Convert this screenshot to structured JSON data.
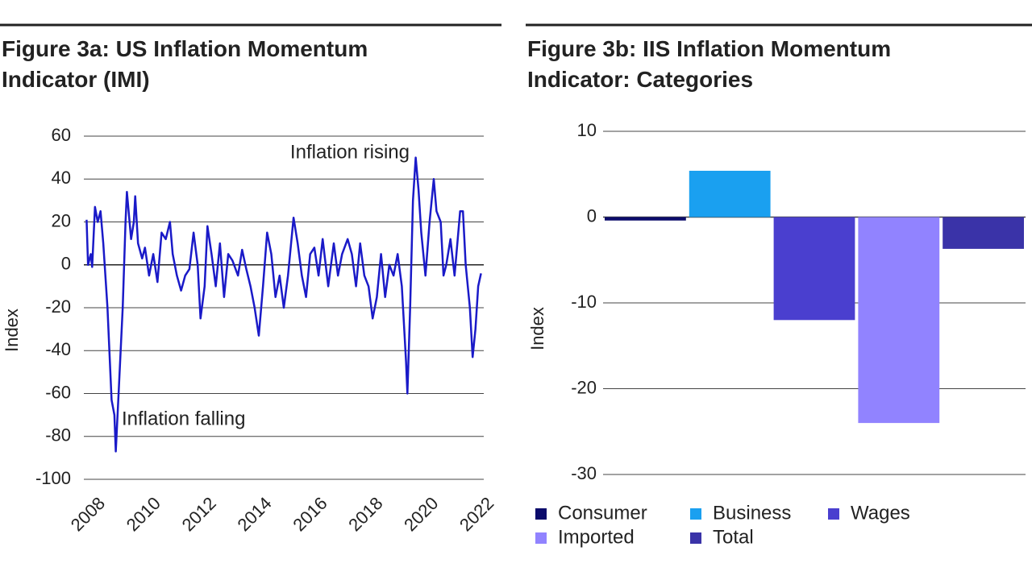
{
  "chart_data": [
    {
      "type": "line",
      "title": "Figure 3a: US Inflation Momentum Indicator (IMI)",
      "ylabel": "Index",
      "annotations": [
        "Inflation rising",
        "Inflation falling"
      ],
      "color": "#1a1ac8",
      "x": [
        2008.0,
        2008.05,
        2008.15,
        2008.2,
        2008.3,
        2008.4,
        2008.5,
        2008.6,
        2008.75,
        2008.9,
        2009.0,
        2009.05,
        2009.15,
        2009.3,
        2009.4,
        2009.45,
        2009.6,
        2009.7,
        2009.75,
        2009.85,
        2010.0,
        2010.1,
        2010.25,
        2010.4,
        2010.55,
        2010.7,
        2010.85,
        2011.0,
        2011.1,
        2011.25,
        2011.4,
        2011.55,
        2011.7,
        2011.85,
        2012.0,
        2012.1,
        2012.25,
        2012.35,
        2012.5,
        2012.65,
        2012.8,
        2012.95,
        2013.1,
        2013.25,
        2013.45,
        2013.6,
        2013.75,
        2013.9,
        2014.05,
        2014.2,
        2014.35,
        2014.5,
        2014.65,
        2014.8,
        2014.95,
        2015.1,
        2015.25,
        2015.45,
        2015.6,
        2015.75,
        2015.9,
        2016.05,
        2016.2,
        2016.35,
        2016.5,
        2016.7,
        2016.9,
        2017.05,
        2017.2,
        2017.4,
        2017.55,
        2017.7,
        2017.85,
        2018.0,
        2018.15,
        2018.3,
        2018.45,
        2018.6,
        2018.75,
        2018.9,
        2019.05,
        2019.2,
        2019.35,
        2019.5,
        2019.55,
        2019.65,
        2019.75,
        2019.85,
        2019.95,
        2020.05,
        2020.2,
        2020.35,
        2020.5,
        2020.6,
        2020.75,
        2020.85,
        2020.95,
        2021.1,
        2021.25,
        2021.45,
        2021.55,
        2021.65,
        2021.8,
        2021.9,
        2022.0,
        2022.1,
        2022.2
      ],
      "values": [
        21,
        0,
        5,
        -1,
        27,
        20,
        25,
        10,
        -20,
        -63,
        -70,
        -87,
        -60,
        -20,
        20,
        34,
        12,
        20,
        32,
        10,
        3,
        8,
        -5,
        5,
        -8,
        15,
        12,
        20,
        5,
        -5,
        -12,
        -5,
        -2,
        15,
        0,
        -25,
        -10,
        18,
        5,
        -10,
        10,
        -15,
        5,
        2,
        -5,
        7,
        -2,
        -10,
        -20,
        -33,
        -10,
        15,
        5,
        -15,
        -5,
        -20,
        -5,
        22,
        10,
        -5,
        -15,
        5,
        8,
        -5,
        12,
        -10,
        10,
        -5,
        5,
        12,
        5,
        -10,
        10,
        -5,
        -10,
        -25,
        -15,
        5,
        -15,
        0,
        -5,
        5,
        -10,
        -45,
        -60,
        -20,
        30,
        50,
        35,
        15,
        -5,
        20,
        40,
        25,
        20,
        -5,
        0,
        12,
        -5,
        25,
        25,
        0,
        -20,
        -43,
        -30,
        -10,
        -4
      ],
      "xlim": [
        2007.9,
        2022.3
      ],
      "xticks": [
        2008,
        2010,
        2012,
        2014,
        2016,
        2018,
        2020,
        2022
      ],
      "ylim": [
        -100,
        60
      ],
      "yticks": [
        -100,
        -80,
        -60,
        -40,
        -20,
        0,
        20,
        40,
        60
      ],
      "grid": true
    },
    {
      "type": "bar",
      "title": "Figure 3b: IIS Inflation Momentum Indicator: Categories",
      "ylabel": "Index",
      "categories": [
        "Consumer",
        "Business",
        "Wages",
        "Imported",
        "Total"
      ],
      "values": [
        -0.4,
        5.4,
        -12,
        -24,
        -3.7
      ],
      "colors": [
        "#0b0b6b",
        "#1aa0f0",
        "#4a3fcf",
        "#9183ff",
        "#3a33a8"
      ],
      "ylim": [
        -30,
        10
      ],
      "yticks": [
        -30,
        -20,
        -10,
        0,
        10
      ],
      "grid": true
    }
  ]
}
